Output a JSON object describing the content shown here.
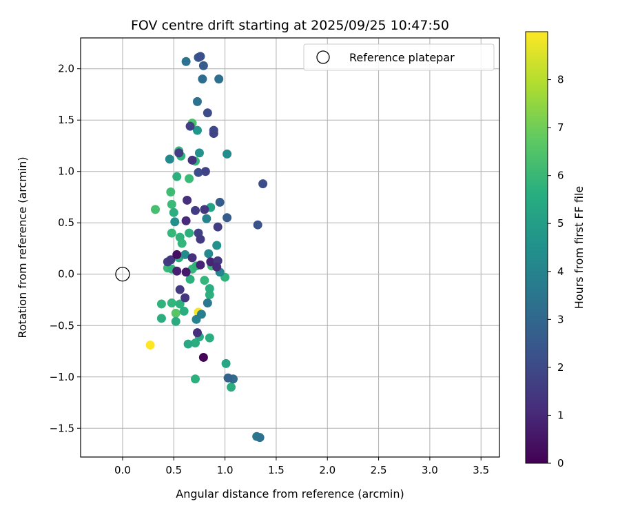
{
  "chart_data": {
    "type": "scatter",
    "title": "FOV centre drift starting at 2025/09/25 10:47:50",
    "xlabel": "Angular distance from reference (arcmin)",
    "ylabel": "Rotation from reference (arcmin)",
    "xlim": [
      -0.41,
      3.68
    ],
    "ylim": [
      -1.78,
      2.3
    ],
    "x_ticks": [
      0.0,
      0.5,
      1.0,
      1.5,
      2.0,
      2.5,
      3.0,
      3.5
    ],
    "x_tick_labels": [
      "0.0",
      "0.5",
      "1.0",
      "1.5",
      "2.0",
      "2.5",
      "3.0",
      "3.5"
    ],
    "y_ticks": [
      -1.5,
      -1.0,
      -0.5,
      0.0,
      0.5,
      1.0,
      1.5,
      2.0
    ],
    "y_tick_labels": [
      "−1.5",
      "−1.0",
      "−0.5",
      "0.0",
      "0.5",
      "1.0",
      "1.5",
      "2.0"
    ],
    "grid": true,
    "legend": {
      "position": "top-right",
      "entries": [
        "Reference platepar"
      ]
    },
    "reference_point": {
      "x": 0.0,
      "y": 0.0,
      "label": "Reference platepar"
    },
    "colorbar": {
      "label": "Hours from first FF file",
      "colormap": "viridis",
      "range": [
        0,
        9
      ],
      "ticks": [
        0,
        1,
        2,
        3,
        4,
        5,
        6,
        7,
        8
      ],
      "tick_labels": [
        "0",
        "1",
        "2",
        "3",
        "4",
        "5",
        "6",
        "7",
        "8"
      ]
    },
    "points": [
      {
        "x": 0.27,
        "y": -0.69,
        "hours": 9.0
      },
      {
        "x": 0.74,
        "y": -0.37,
        "hours": 8.9
      },
      {
        "x": 0.52,
        "y": -0.38,
        "hours": 6.6
      },
      {
        "x": 0.68,
        "y": 1.47,
        "hours": 6.4
      },
      {
        "x": 0.32,
        "y": 0.63,
        "hours": 6.3
      },
      {
        "x": 0.47,
        "y": 0.8,
        "hours": 6.2
      },
      {
        "x": 0.48,
        "y": 0.68,
        "hours": 6.1
      },
      {
        "x": 0.65,
        "y": 0.93,
        "hours": 6.1
      },
      {
        "x": 0.71,
        "y": 1.1,
        "hours": 6.0
      },
      {
        "x": 0.55,
        "y": 1.2,
        "hours": 5.9
      },
      {
        "x": 0.57,
        "y": 1.15,
        "hours": 5.8
      },
      {
        "x": 0.53,
        "y": 0.95,
        "hours": 5.7
      },
      {
        "x": 0.5,
        "y": 0.6,
        "hours": 5.6
      },
      {
        "x": 0.48,
        "y": 0.4,
        "hours": 6.0
      },
      {
        "x": 0.56,
        "y": 0.36,
        "hours": 5.8
      },
      {
        "x": 0.58,
        "y": 0.3,
        "hours": 5.9
      },
      {
        "x": 0.65,
        "y": 0.4,
        "hours": 5.7
      },
      {
        "x": 0.44,
        "y": 0.06,
        "hours": 6.1
      },
      {
        "x": 0.48,
        "y": 0.05,
        "hours": 5.9
      },
      {
        "x": 0.55,
        "y": 0.16,
        "hours": 5.6
      },
      {
        "x": 0.68,
        "y": 0.05,
        "hours": 6.0
      },
      {
        "x": 0.72,
        "y": 0.08,
        "hours": 5.8
      },
      {
        "x": 0.66,
        "y": -0.05,
        "hours": 5.7
      },
      {
        "x": 0.8,
        "y": -0.06,
        "hours": 5.9
      },
      {
        "x": 0.87,
        "y": 0.08,
        "hours": 6.1
      },
      {
        "x": 1.0,
        "y": -0.03,
        "hours": 5.8
      },
      {
        "x": 0.85,
        "y": -0.2,
        "hours": 5.7
      },
      {
        "x": 0.85,
        "y": -0.14,
        "hours": 5.6
      },
      {
        "x": 0.38,
        "y": -0.29,
        "hours": 5.8
      },
      {
        "x": 0.38,
        "y": -0.43,
        "hours": 5.6
      },
      {
        "x": 0.48,
        "y": -0.28,
        "hours": 5.9
      },
      {
        "x": 0.56,
        "y": -0.29,
        "hours": 5.7
      },
      {
        "x": 0.6,
        "y": -0.36,
        "hours": 5.6
      },
      {
        "x": 0.52,
        "y": -0.46,
        "hours": 5.5
      },
      {
        "x": 0.71,
        "y": -0.67,
        "hours": 5.6
      },
      {
        "x": 0.64,
        "y": -0.68,
        "hours": 5.4
      },
      {
        "x": 0.75,
        "y": -0.61,
        "hours": 5.5
      },
      {
        "x": 0.85,
        "y": -0.62,
        "hours": 5.6
      },
      {
        "x": 0.71,
        "y": -1.02,
        "hours": 5.7
      },
      {
        "x": 1.01,
        "y": -0.87,
        "hours": 5.3
      },
      {
        "x": 1.06,
        "y": -1.1,
        "hours": 5.6
      },
      {
        "x": 0.86,
        "y": 0.65,
        "hours": 5.2
      },
      {
        "x": 0.73,
        "y": 1.4,
        "hours": 4.7
      },
      {
        "x": 0.75,
        "y": 1.18,
        "hours": 4.5
      },
      {
        "x": 0.46,
        "y": 1.12,
        "hours": 4.2
      },
      {
        "x": 0.51,
        "y": 0.51,
        "hours": 4.5
      },
      {
        "x": 0.61,
        "y": 0.19,
        "hours": 4.4
      },
      {
        "x": 0.82,
        "y": 0.54,
        "hours": 4.0
      },
      {
        "x": 0.84,
        "y": 0.2,
        "hours": 4.2
      },
      {
        "x": 0.92,
        "y": 0.28,
        "hours": 4.5
      },
      {
        "x": 0.95,
        "y": 0.02,
        "hours": 4.1
      },
      {
        "x": 1.02,
        "y": 1.17,
        "hours": 4.4
      },
      {
        "x": 0.72,
        "y": -0.44,
        "hours": 4.0
      },
      {
        "x": 0.77,
        "y": -0.39,
        "hours": 3.8
      },
      {
        "x": 0.83,
        "y": -0.28,
        "hours": 3.6
      },
      {
        "x": 0.62,
        "y": 2.07,
        "hours": 3.4
      },
      {
        "x": 0.73,
        "y": 1.68,
        "hours": 3.4
      },
      {
        "x": 0.78,
        "y": 1.9,
        "hours": 3.2
      },
      {
        "x": 0.94,
        "y": 1.9,
        "hours": 3.3
      },
      {
        "x": 1.31,
        "y": -1.58,
        "hours": 3.6
      },
      {
        "x": 1.34,
        "y": -1.59,
        "hours": 3.4
      },
      {
        "x": 1.08,
        "y": -1.02,
        "hours": 3.1
      },
      {
        "x": 1.03,
        "y": -1.01,
        "hours": 2.8
      },
      {
        "x": 1.02,
        "y": 0.55,
        "hours": 2.6
      },
      {
        "x": 0.95,
        "y": 0.7,
        "hours": 2.6
      },
      {
        "x": 0.79,
        "y": 2.03,
        "hours": 2.6
      },
      {
        "x": 0.74,
        "y": 2.11,
        "hours": 2.4
      },
      {
        "x": 0.76,
        "y": 2.12,
        "hours": 2.2
      },
      {
        "x": 0.83,
        "y": 1.57,
        "hours": 2.1
      },
      {
        "x": 0.89,
        "y": 1.4,
        "hours": 2.0
      },
      {
        "x": 0.89,
        "y": 1.37,
        "hours": 1.8
      },
      {
        "x": 0.66,
        "y": 1.44,
        "hours": 1.7
      },
      {
        "x": 0.74,
        "y": 0.99,
        "hours": 2.1
      },
      {
        "x": 0.81,
        "y": 1.0,
        "hours": 1.8
      },
      {
        "x": 0.68,
        "y": 1.11,
        "hours": 1.3
      },
      {
        "x": 0.55,
        "y": 1.18,
        "hours": 1.6
      },
      {
        "x": 0.63,
        "y": 0.72,
        "hours": 1.2
      },
      {
        "x": 0.71,
        "y": 0.62,
        "hours": 1.6
      },
      {
        "x": 0.8,
        "y": 0.63,
        "hours": 1.4
      },
      {
        "x": 0.93,
        "y": 0.46,
        "hours": 1.6
      },
      {
        "x": 1.37,
        "y": 0.88,
        "hours": 2.1
      },
      {
        "x": 1.32,
        "y": 0.48,
        "hours": 2.3
      },
      {
        "x": 0.62,
        "y": 0.52,
        "hours": 1.1
      },
      {
        "x": 0.74,
        "y": 0.4,
        "hours": 1.7
      },
      {
        "x": 0.76,
        "y": 0.34,
        "hours": 1.5
      },
      {
        "x": 0.44,
        "y": 0.12,
        "hours": 1.6
      },
      {
        "x": 0.47,
        "y": 0.14,
        "hours": 1.4
      },
      {
        "x": 0.53,
        "y": 0.19,
        "hours": 0.3
      },
      {
        "x": 0.68,
        "y": 0.16,
        "hours": 1.2
      },
      {
        "x": 0.86,
        "y": 0.12,
        "hours": 0.9
      },
      {
        "x": 0.93,
        "y": 0.13,
        "hours": 1.5
      },
      {
        "x": 0.92,
        "y": 0.07,
        "hours": 1.1
      },
      {
        "x": 0.76,
        "y": 0.09,
        "hours": 0.9
      },
      {
        "x": 0.53,
        "y": 0.03,
        "hours": 0.8
      },
      {
        "x": 0.62,
        "y": 0.02,
        "hours": 0.6
      },
      {
        "x": 0.56,
        "y": -0.15,
        "hours": 1.5
      },
      {
        "x": 0.61,
        "y": -0.23,
        "hours": 1.4
      },
      {
        "x": 0.73,
        "y": -0.57,
        "hours": 1.2
      },
      {
        "x": 0.79,
        "y": -0.81,
        "hours": 0.1
      }
    ]
  }
}
